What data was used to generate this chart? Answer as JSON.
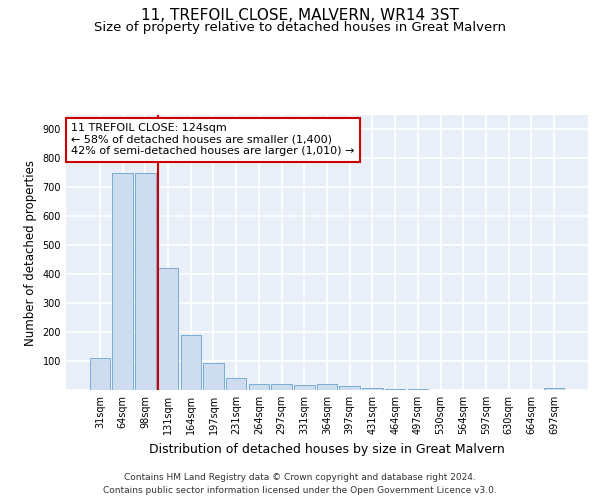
{
  "title1": "11, TREFOIL CLOSE, MALVERN, WR14 3ST",
  "title2": "Size of property relative to detached houses in Great Malvern",
  "xlabel": "Distribution of detached houses by size in Great Malvern",
  "ylabel": "Number of detached properties",
  "footer1": "Contains HM Land Registry data © Crown copyright and database right 2024.",
  "footer2": "Contains public sector information licensed under the Open Government Licence v3.0.",
  "categories": [
    "31sqm",
    "64sqm",
    "98sqm",
    "131sqm",
    "164sqm",
    "197sqm",
    "231sqm",
    "264sqm",
    "297sqm",
    "331sqm",
    "364sqm",
    "397sqm",
    "431sqm",
    "464sqm",
    "497sqm",
    "530sqm",
    "564sqm",
    "597sqm",
    "630sqm",
    "664sqm",
    "697sqm"
  ],
  "values": [
    110,
    750,
    750,
    420,
    190,
    95,
    42,
    22,
    22,
    18,
    20,
    15,
    8,
    2,
    2,
    0,
    0,
    0,
    0,
    0,
    8
  ],
  "bar_color": "#cddcee",
  "bar_edge_color": "#7aadd4",
  "marker_index": 3,
  "annotation_title": "11 TREFOIL CLOSE: 124sqm",
  "annotation_line1": "← 58% of detached houses are smaller (1,400)",
  "annotation_line2": "42% of semi-detached houses are larger (1,010) →",
  "annotation_box_color": "#ffffff",
  "annotation_box_edge": "#cc0000",
  "marker_line_color": "#cc0000",
  "ylim": [
    0,
    950
  ],
  "yticks": [
    0,
    100,
    200,
    300,
    400,
    500,
    600,
    700,
    800,
    900
  ],
  "background_color": "#e8eff8",
  "grid_color": "#ffffff",
  "title1_fontsize": 11,
  "title2_fontsize": 9.5,
  "xlabel_fontsize": 9,
  "ylabel_fontsize": 8.5,
  "tick_fontsize": 7,
  "footer_fontsize": 6.5,
  "annotation_fontsize": 8
}
